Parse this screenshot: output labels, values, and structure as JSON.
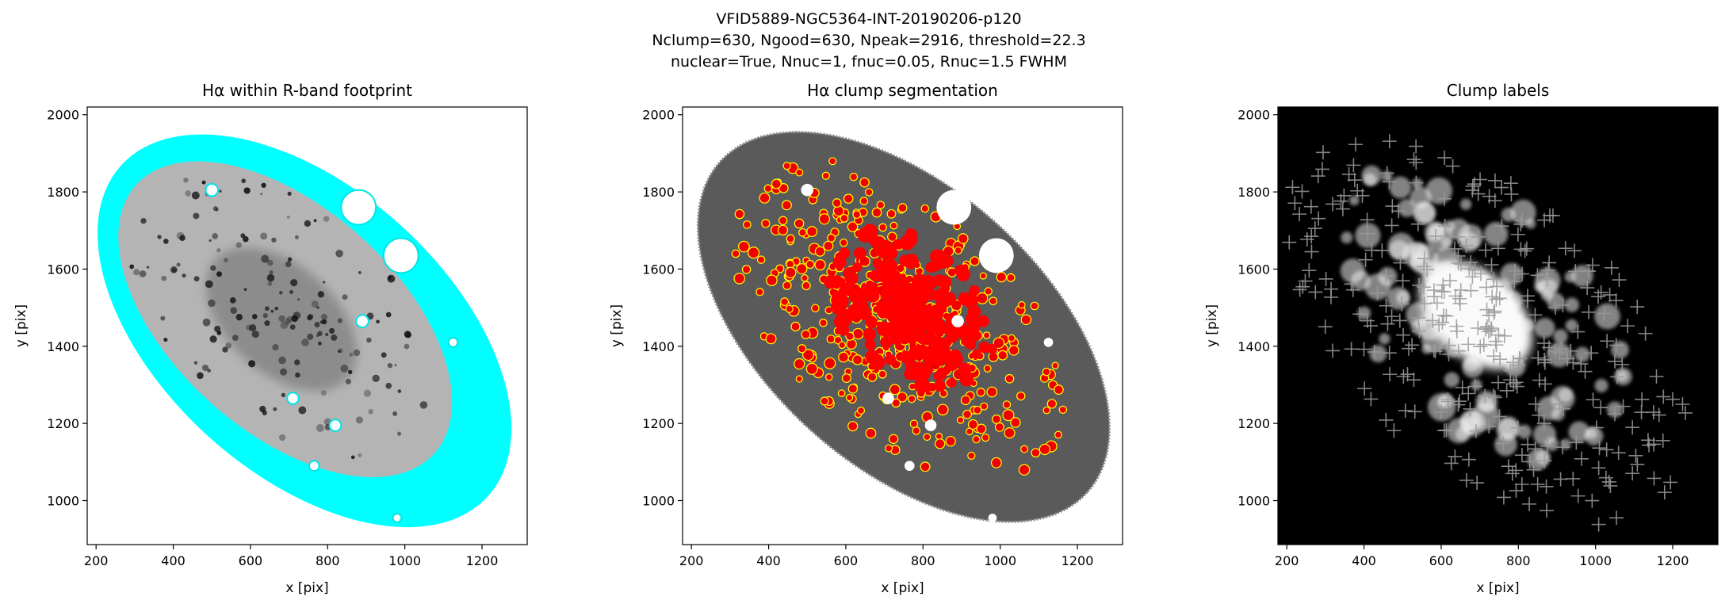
{
  "title": [
    "VFID5889-NGC5364-INT-20190206-p120",
    "Nclump=630, Ngood=630, Npeak=2916, threshold=22.3",
    "nuclear=True, Nnuc=1, fnuc=0.05, Rnuc=1.5 FWHM"
  ],
  "chart_data": [
    {
      "type": "image",
      "title": "Hα within R-band footprint",
      "x_label": "x [pix]",
      "y_label": "y [pix]",
      "xlim": [
        177,
        1317
      ],
      "ylim": [
        886,
        2020
      ],
      "xticks": [
        200,
        400,
        600,
        800,
        1000,
        1200
      ],
      "yticks": [
        1000,
        1200,
        1400,
        1600,
        1800,
        2000
      ]
    },
    {
      "type": "image",
      "title": "Hα clump segmentation",
      "x_label": "x [pix]",
      "y_label": "y [pix]",
      "xlim": [
        177,
        1317
      ],
      "ylim": [
        886,
        2020
      ],
      "xticks": [
        200,
        400,
        600,
        800,
        1000,
        1200
      ],
      "yticks": [
        1000,
        1200,
        1400,
        1600,
        1800,
        2000
      ]
    },
    {
      "type": "image",
      "title": "Clump labels",
      "x_label": "x [pix]",
      "y_label": "y [pix]",
      "xlim": [
        177,
        1317
      ],
      "ylim": [
        886,
        2020
      ],
      "xticks": [
        200,
        400,
        600,
        800,
        1000,
        1200
      ],
      "yticks": [
        1000,
        1200,
        1400,
        1600,
        1800,
        2000
      ]
    }
  ]
}
